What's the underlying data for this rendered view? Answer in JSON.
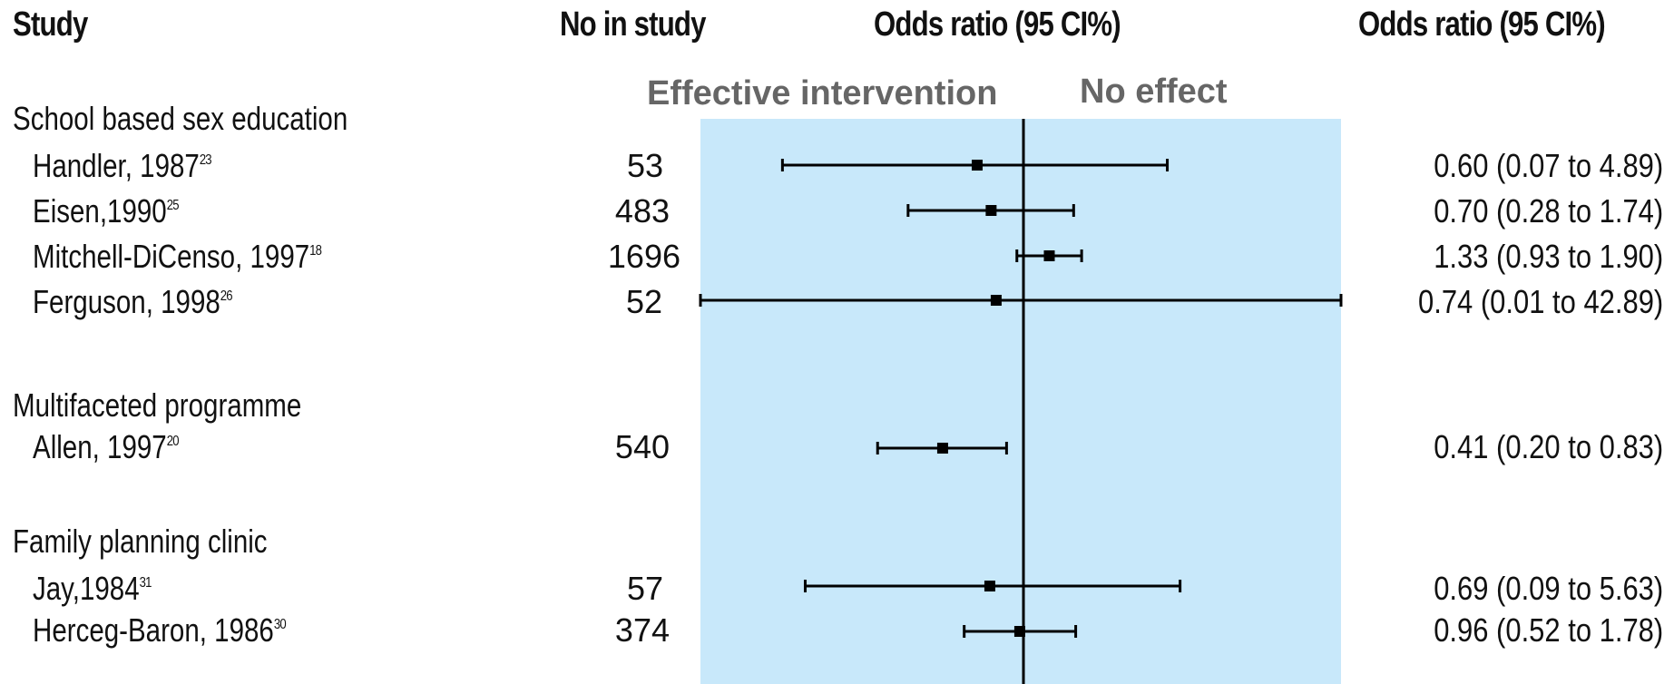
{
  "headers": {
    "study": "Study",
    "number": "No in study",
    "plot_title": "Odds ratio (95 CI%)",
    "result": "Odds ratio (95 CI%)"
  },
  "annotations": {
    "left": "Effective intervention",
    "right": "No effect"
  },
  "colors": {
    "panel": "#c8e8fa",
    "ink": "#000000",
    "annotation": "#666666"
  },
  "groups": [
    {
      "name": "School based sex education",
      "studies": [
        {
          "author": "Handler, 1987",
          "ref": "23",
          "n": "53",
          "or_text": "0.60 (0.07 to 4.89)"
        },
        {
          "author": "Eisen,1990",
          "ref": "25",
          "n": "483",
          "or_text": "0.70 (0.28 to 1.74)"
        },
        {
          "author": "Mitchell-DiCenso, 1997",
          "ref": "18",
          "n": "1696",
          "or_text": "1.33 (0.93 to 1.90)"
        },
        {
          "author": "Ferguson, 1998",
          "ref": "26",
          "n": "52",
          "or_text": "0.74 (0.01 to 42.89)"
        }
      ]
    },
    {
      "name": "Multifaceted programme",
      "studies": [
        {
          "author": "Allen, 1997",
          "ref": "20",
          "n": "540",
          "or_text": "0.41 (0.20 to 0.83)"
        }
      ]
    },
    {
      "name": "Family planning clinic",
      "studies": [
        {
          "author": "Jay,1984",
          "ref": "31",
          "n": "57",
          "or_text": "0.69 (0.09 to 5.63)"
        },
        {
          "author": "Herceg-Baron, 1986",
          "ref": "30",
          "n": "374",
          "or_text": "0.96 (0.52 to 1.78)"
        }
      ]
    }
  ],
  "chart_data": {
    "type": "forest",
    "title": "Odds ratio (95 CI%)",
    "null_value": 1,
    "x_scale": "log",
    "studies": [
      {
        "label": "Handler, 1987",
        "group": "School based sex education",
        "or": 0.6,
        "lower": 0.07,
        "upper": 4.89
      },
      {
        "label": "Eisen,1990",
        "group": "School based sex education",
        "or": 0.7,
        "lower": 0.28,
        "upper": 1.74
      },
      {
        "label": "Mitchell-DiCenso, 1997",
        "group": "School based sex education",
        "or": 1.33,
        "lower": 0.93,
        "upper": 1.9
      },
      {
        "label": "Ferguson, 1998",
        "group": "School based sex education",
        "or": 0.74,
        "lower": 0.01,
        "upper": 42.89
      },
      {
        "label": "Allen, 1997",
        "group": "Multifaceted programme",
        "or": 0.41,
        "lower": 0.2,
        "upper": 0.83
      },
      {
        "label": "Jay,1984",
        "group": "Family planning clinic",
        "or": 0.69,
        "lower": 0.09,
        "upper": 5.63
      },
      {
        "label": "Herceg-Baron, 1986",
        "group": "Family planning clinic",
        "or": 0.96,
        "lower": 0.52,
        "upper": 1.78
      }
    ]
  }
}
